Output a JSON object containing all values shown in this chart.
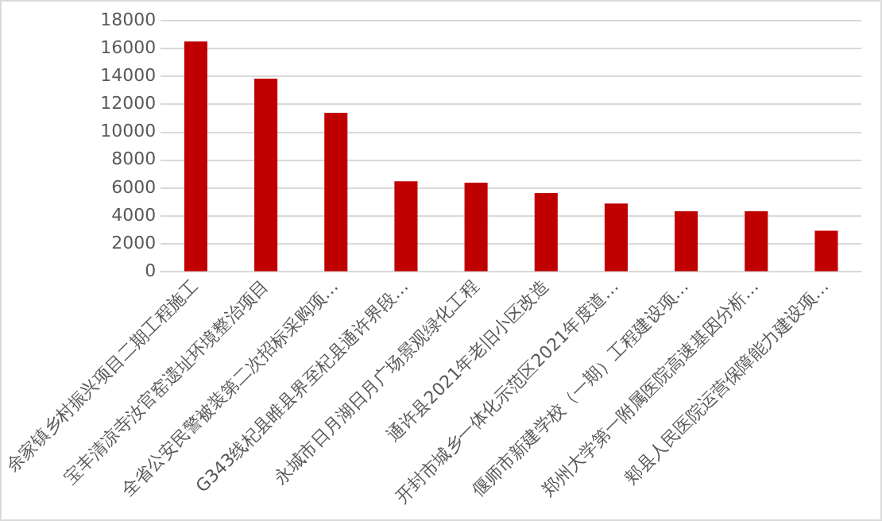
{
  "chart_data": {
    "type": "bar",
    "categories": [
      "余家镇乡村振兴项目二期工程施工",
      "宝丰清凉寺汝官窑遗址环境整治项目",
      "全省公安民警被装第二次招标采购项…",
      "G343线杞县睢县界至杞县通许界段…",
      "永城市日月湖日月广场景观绿化工程",
      "通许县2021年老旧小区改造",
      "开封市城乡一体化示范区2021年度道…",
      "偃师市新建学校（一期）工程建设项…",
      "郑州大学第一附属医院高速基因分析…",
      "郏县人民医院运营保障能力建设项…"
    ],
    "values": [
      16500,
      13850,
      11400,
      6500,
      6400,
      5650,
      4900,
      4350,
      4350,
      2950
    ],
    "color": "#c00000",
    "ylim": [
      0,
      18000
    ],
    "yticks": [
      0,
      2000,
      4000,
      6000,
      8000,
      10000,
      12000,
      14000,
      16000,
      18000
    ],
    "grid": "y",
    "legend": false
  }
}
